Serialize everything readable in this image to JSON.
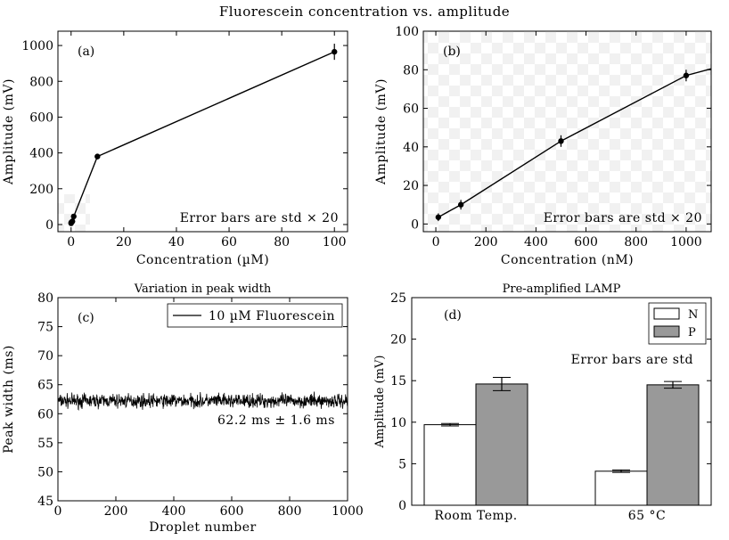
{
  "figure": {
    "title": "Fluorescein concentration vs. amplitude"
  },
  "chart_data": [
    {
      "panel": "(a)",
      "type": "line",
      "title": "",
      "xlabel": "Concentration (µM)",
      "ylabel": "Amplitude (mV)",
      "xlim": [
        -5,
        105
      ],
      "ylim": [
        -40,
        1080
      ],
      "xticks": [
        0,
        20,
        40,
        60,
        80,
        100
      ],
      "yticks": [
        0,
        200,
        400,
        600,
        800,
        1000
      ],
      "annotation": "Error bars are std × 20",
      "background": "checkerboard near origin",
      "series": [
        {
          "x": [
            0.01,
            0.1,
            0.5,
            1,
            10,
            100
          ],
          "y": [
            7,
            12,
            18,
            45,
            380,
            965
          ],
          "err": [
            3,
            3,
            3,
            4,
            15,
            45
          ]
        }
      ]
    },
    {
      "panel": "(b)",
      "type": "line",
      "title": "",
      "xlabel": "Concentration (nM)",
      "ylabel": "Amplitude (mV)",
      "xlim": [
        -50,
        1100
      ],
      "ylim": [
        -4,
        100
      ],
      "xticks": [
        0,
        200,
        400,
        600,
        800,
        1000
      ],
      "yticks": [
        0,
        20,
        40,
        60,
        80,
        100
      ],
      "annotation": "Error bars are std × 20",
      "background": "checkerboard",
      "series": [
        {
          "x": [
            10,
            100,
            500,
            1000
          ],
          "y": [
            3.5,
            10,
            43,
            77
          ],
          "err": [
            2.0,
            2.5,
            3.0,
            3.0
          ],
          "extend_to": [
            1100,
            80.5
          ]
        }
      ]
    },
    {
      "panel": "(c)",
      "type": "line",
      "title": "Variation in peak width",
      "xlabel": "Droplet number",
      "ylabel": "Peak width (ms)",
      "xlim": [
        0,
        1000
      ],
      "ylim": [
        45,
        80
      ],
      "xticks": [
        0,
        200,
        400,
        600,
        800,
        1000
      ],
      "yticks": [
        45,
        50,
        55,
        60,
        65,
        70,
        75,
        80
      ],
      "annotation": "62.2 ms ± 1.6 ms",
      "legend": "top-right",
      "series": [
        {
          "name": "10 µM Fluorescein",
          "mean": 62.2,
          "std": 1.6,
          "count": 1000
        }
      ]
    },
    {
      "panel": "(d)",
      "type": "bar",
      "title": "Pre-amplified LAMP",
      "xlabel": "",
      "ylabel": "Amplitude (mV)",
      "ylim": [
        0,
        25
      ],
      "yticks": [
        0,
        5,
        10,
        15,
        20,
        25
      ],
      "categories": [
        "Room Temp.",
        "65 °C"
      ],
      "annotation": "Error bars are std",
      "legend": "top-right",
      "series": [
        {
          "name": "N",
          "values": [
            9.7,
            4.1
          ],
          "err": [
            0.15,
            0.15
          ],
          "color": "#ffffff"
        },
        {
          "name": "P",
          "values": [
            14.6,
            14.5
          ],
          "err": [
            0.8,
            0.4
          ],
          "color": "#999999"
        }
      ]
    }
  ]
}
